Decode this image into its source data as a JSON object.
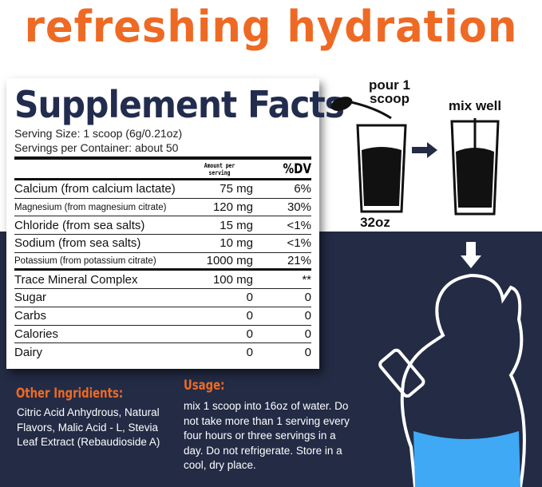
{
  "headline": "refreshing hydration",
  "facts": {
    "title": "Supplement Facts",
    "serving_size": "Serving Size: 1 scoop (6g/0.21oz)",
    "servings_per_container": "Servings per Container: about 50",
    "col_amount": "Amount per serving",
    "col_dv": "%DV",
    "rows": [
      {
        "name": "Calcium (from calcium lactate)",
        "amount": "75 mg",
        "dv": "6%"
      },
      {
        "name": "Magnesium (from magnesium citrate)",
        "amount": "120 mg",
        "dv": "30%"
      },
      {
        "name": "Chloride (from sea salts)",
        "amount": "15 mg",
        "dv": "<1%"
      },
      {
        "name": "Sodium (from sea salts)",
        "amount": "10 mg",
        "dv": "<1%"
      },
      {
        "name": "Potassium (from potassium citrate)",
        "amount": "1000 mg",
        "dv": "21%"
      },
      {
        "name": "Trace Mineral Complex",
        "amount": "100 mg",
        "dv": "**"
      },
      {
        "name": "Sugar",
        "amount": "0",
        "dv": "0"
      },
      {
        "name": "Carbs",
        "amount": "0",
        "dv": "0"
      },
      {
        "name": "Calories",
        "amount": "0",
        "dv": "0"
      },
      {
        "name": "Dairy",
        "amount": "0",
        "dv": "0"
      }
    ]
  },
  "steps": {
    "pour": "pour 1 scoop",
    "mix": "mix well",
    "size": "32oz"
  },
  "other": {
    "title": "Other Ingridients:",
    "text": "Citric Acid Anhydrous, Natural Flavors, Malic Acid - L, Stevia Leaf Extract (Rebaudioside A)"
  },
  "usage": {
    "title": "Usage:",
    "text": "mix 1 scoop into 16oz of water. Do not take more than 1 serving every four hours or three servings in a day. Do not refrigerate. Store in a cool, dry place."
  },
  "colors": {
    "orange": "#ee6a24",
    "navy": "#232b45",
    "water": "#3fa9f5"
  }
}
